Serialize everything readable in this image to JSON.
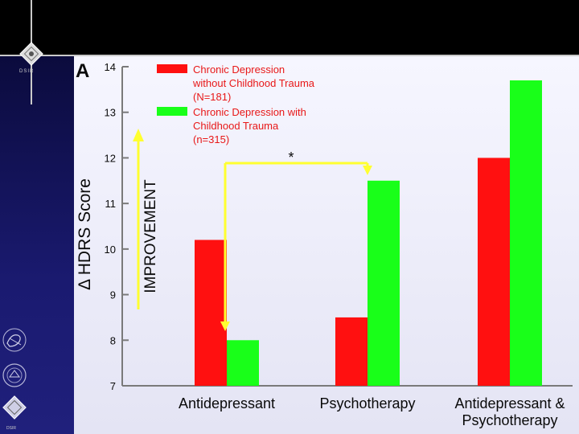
{
  "panel_letter": "A",
  "colors": {
    "red": "#ff1010",
    "green": "#19ff19",
    "yellow": "#ffff30",
    "axis": "#7a7a7a",
    "text": "#0a0a0a",
    "legend_text": "#e81818"
  },
  "icons": {
    "top_logo": "diamond-seal-icon",
    "side_logo_1": "hhs-eagle-icon",
    "side_logo_2": "circular-seal-icon",
    "side_logo_3": "diamond-seal-icon"
  },
  "logo_text": {
    "top": "DSIR",
    "bottom": "DSIR"
  },
  "annotations": {
    "improvement": "IMPROVEMENT",
    "significance": "*"
  },
  "chart_data": {
    "type": "bar",
    "ylabel": "Δ HDRS Score",
    "ylim": [
      7,
      14
    ],
    "yticks": [
      7,
      8,
      9,
      10,
      11,
      12,
      13,
      14
    ],
    "categories": [
      "Antidepressant",
      "Psychotherapy",
      "Antidepressant & Psychotherapy"
    ],
    "category_lines": [
      [
        "Antidepressant"
      ],
      [
        "Psychotherapy"
      ],
      [
        "Antidepressant &",
        "Psychotherapy"
      ]
    ],
    "series": [
      {
        "name": "Chronic Depression without Childhood Trauma (N=181)",
        "legend_lines": [
          "Chronic Depression",
          "without Childhood Trauma",
          "(N=181)"
        ],
        "color": "#ff1010",
        "values": [
          10.2,
          8.5,
          12.0
        ]
      },
      {
        "name": "Chronic Depression with Childhood Trauma (n=315)",
        "legend_lines": [
          "Chronic Depression with",
          "Childhood Trauma",
          "(n=315)"
        ],
        "color": "#19ff19",
        "values": [
          8.0,
          11.5,
          13.7
        ]
      }
    ],
    "legend_position": "top-left"
  }
}
